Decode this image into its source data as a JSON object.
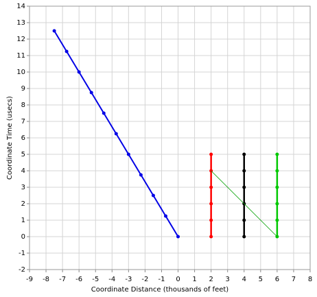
{
  "chart_data": {
    "type": "scatter",
    "xlabel": "Coordinate Distance (thousands of feet)",
    "ylabel": "Coordinate Time (usecs)",
    "xlim": [
      -9,
      8
    ],
    "ylim": [
      -2,
      14
    ],
    "xticks": [
      -9,
      -8,
      -7,
      -6,
      -5,
      -4,
      -3,
      -2,
      -1,
      0,
      1,
      2,
      3,
      4,
      5,
      6,
      7,
      8
    ],
    "yticks": [
      -2,
      -1,
      0,
      1,
      2,
      3,
      4,
      5,
      6,
      7,
      8,
      9,
      10,
      11,
      12,
      13,
      14
    ],
    "grid": true,
    "series": [
      {
        "color": "#0000e6",
        "line_width": 2,
        "markers": true,
        "x": [
          0,
          -0.75,
          -1.5,
          -2.25,
          -3,
          -3.75,
          -4.5,
          -5.25,
          -6,
          -6.75,
          -7.5
        ],
        "values": [
          0,
          1.25,
          2.5,
          3.75,
          5,
          6.25,
          7.5,
          8.75,
          10,
          11.25,
          12.5
        ]
      },
      {
        "color": "#ff0000",
        "line_width": 2.5,
        "markers": true,
        "x": [
          2,
          2,
          2,
          2,
          2,
          2
        ],
        "values": [
          0,
          1,
          2,
          3,
          4,
          5
        ]
      },
      {
        "color": "#000000",
        "line_width": 2.5,
        "markers": true,
        "x": [
          4,
          4,
          4,
          4,
          4,
          4
        ],
        "values": [
          0,
          1,
          2,
          3,
          4,
          5
        ]
      },
      {
        "color": "#00c800",
        "line_width": 2.5,
        "markers": true,
        "x": [
          6,
          6,
          6,
          6,
          6,
          6
        ],
        "values": [
          0,
          1,
          2,
          3,
          4,
          5
        ]
      },
      {
        "color": "#00a000",
        "line_width": 0.8,
        "markers": false,
        "x": [
          2,
          6
        ],
        "values": [
          4,
          0
        ]
      }
    ]
  }
}
